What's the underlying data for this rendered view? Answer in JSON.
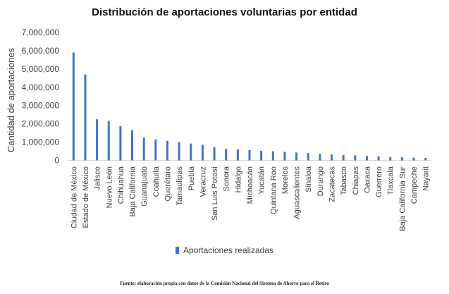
{
  "chart_data": {
    "type": "bar",
    "title": "Distribución de aportaciones voluntarias por entidad",
    "xlabel": "",
    "ylabel": "Cantidad de aportaciones",
    "ylim": [
      0,
      7000000
    ],
    "y_ticks": [
      0,
      1000000,
      2000000,
      3000000,
      4000000,
      5000000,
      6000000,
      7000000
    ],
    "y_tick_labels": [
      "0",
      "1,000,000",
      "2,000,000",
      "3,000,000",
      "4,000,000",
      "5,000,000",
      "6,000,000",
      "7,000,000"
    ],
    "grid": false,
    "legend_position": "bottom",
    "categories": [
      "Ciudad de México",
      "Estado de México",
      "Jalisco",
      "Nuevo León",
      "Chihuahua",
      "Baja California",
      "Guanajuato",
      "Coahuila",
      "Querétaro",
      "Tamaulipas",
      "Puebla",
      "Veracruz",
      "San Luis Potosí",
      "Sonora",
      "Hidalgo",
      "Michoacán",
      "Yucatán",
      "Quintana Roo",
      "Morelos",
      "Aguascalientes",
      "Sinaloa",
      "Durango",
      "Zacatecas",
      "Tabasco",
      "Chiapas",
      "Oaxaca",
      "Guerrero",
      "Tlaxcala",
      "Baja California Sur",
      "Campeche",
      "Nayarit"
    ],
    "series": [
      {
        "name": "Aportaciones realizadas",
        "color": "#4472c4",
        "values": [
          5900000,
          4700000,
          2250000,
          2150000,
          1880000,
          1650000,
          1250000,
          1150000,
          1070000,
          1000000,
          920000,
          850000,
          720000,
          640000,
          600000,
          560000,
          530000,
          500000,
          470000,
          430000,
          400000,
          360000,
          320000,
          300000,
          270000,
          240000,
          220000,
          190000,
          170000,
          150000,
          130000
        ]
      }
    ]
  },
  "footer": {
    "source": "Fuente: elaboración propia con datos de la Comisión Nacional del Sistema de Ahorro para el Retiro"
  }
}
